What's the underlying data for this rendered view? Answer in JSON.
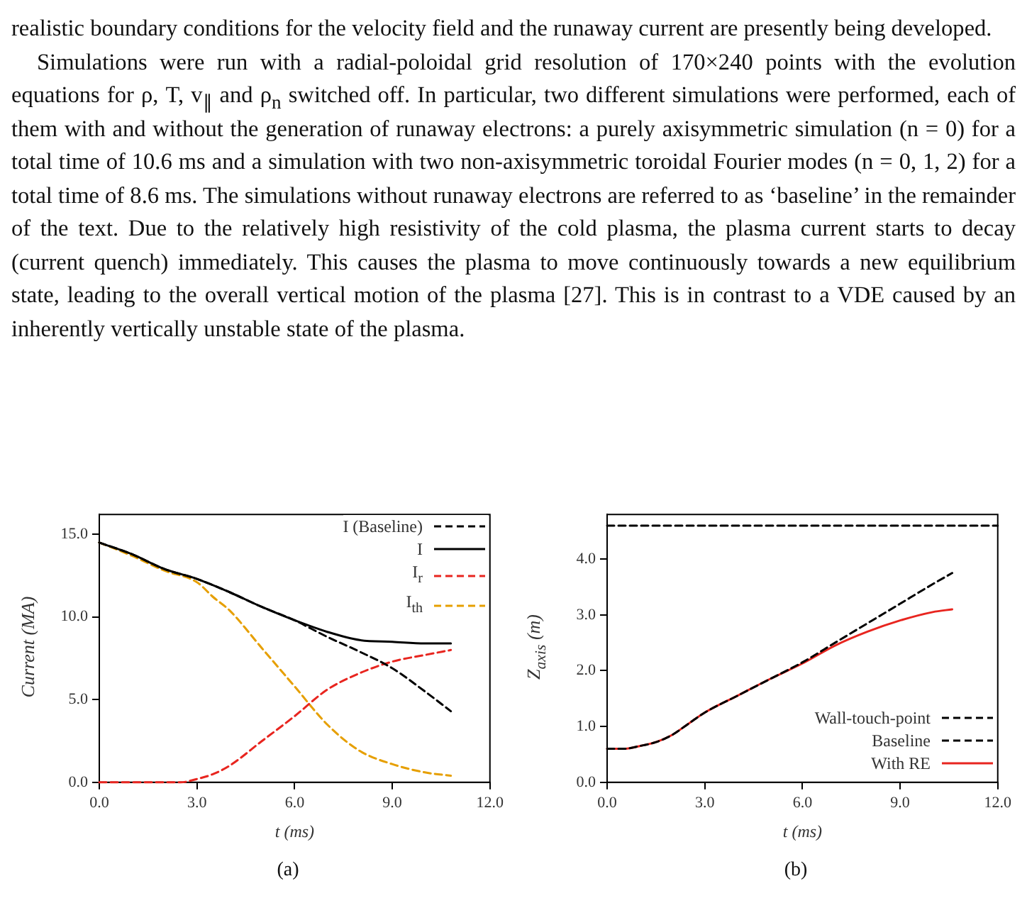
{
  "chart_data": [
    {
      "type": "line",
      "annotations": [
        "realistic boundary conditions for the velocity field and the runaway current are presently being developed.",
        "Simulations were run with a radial-poloidal grid resolution of 170×240 points with the evolution equations for ρ, T, v$_{∥}$ and ρ$_{n}$ switched off. In particular, two different simulations were performed, each of them with and without the generation of runaway electrons: a purely axisymmetric simulation (n = 0) for a total time of 10.6 ms and a simulation with two non-axisymmetric toroidal Fourier modes (n = 0, 1, 2) for a total time of 8.6 ms. The simulations without runaway electrons are referred to as ‘baseline’ in the remainder of the text. Due to the relatively high resistivity of the cold plasma, the plasma current starts to decay (current quench) immediately. This causes the plasma to move continuously towards a new equilibrium state, leading to the overall vertical motion of the plasma [27]. This is in contrast to a VDE caused by an inherently vertically unstable state of the plasma.",
        "(a)"
      ],
      "xlabel": "t (ms)",
      "ylabel": "Current (MA)",
      "xlim": [
        0,
        12
      ],
      "ylim": [
        0,
        16.2
      ],
      "xticks": [
        {
          "value": 0,
          "label": "0.0"
        },
        {
          "value": 3,
          "label": "3.0"
        },
        {
          "value": 6,
          "label": "6.0"
        },
        {
          "value": 9,
          "label": "9.0"
        },
        {
          "value": 12,
          "label": "12.0"
        }
      ],
      "yticks": [
        {
          "value": 0,
          "label": "0.0"
        },
        {
          "value": 5,
          "label": "5.0"
        },
        {
          "value": 10,
          "label": "10.0"
        },
        {
          "value": 15,
          "label": "15.0"
        }
      ],
      "grid": false,
      "legend": "top right",
      "series": [
        {
          "name": "I (Baseline)",
          "color": "#000000",
          "line_style": "dashed",
          "x": [
            0,
            1,
            2,
            3,
            4,
            5,
            6,
            6.5,
            7,
            8,
            9,
            10,
            10.8
          ],
          "values": [
            14.5,
            13.8,
            12.9,
            12.3,
            11.5,
            10.6,
            9.8,
            9.3,
            8.8,
            7.9,
            6.9,
            5.5,
            4.3
          ]
        },
        {
          "name": "I",
          "color": "#000000",
          "line_style": "solid",
          "x": [
            0,
            1,
            2,
            3,
            4,
            5,
            6,
            7,
            8,
            9,
            10,
            10.8
          ],
          "values": [
            14.5,
            13.8,
            12.9,
            12.3,
            11.5,
            10.6,
            9.8,
            9.1,
            8.6,
            8.5,
            8.4,
            8.4
          ]
        },
        {
          "name": "I$_{r}$",
          "color": "#e8251f",
          "line_style": "dashed",
          "x": [
            0,
            2,
            2.5,
            3,
            3.5,
            4,
            5,
            6,
            7,
            8,
            9,
            10,
            10.8
          ],
          "values": [
            0,
            0,
            0,
            0.2,
            0.5,
            1.0,
            2.5,
            4.0,
            5.6,
            6.6,
            7.3,
            7.7,
            8.0
          ]
        },
        {
          "name": "I$_{th}$",
          "color": "#e69f00",
          "line_style": "dashed",
          "x": [
            0,
            1,
            2,
            3,
            3.5,
            4,
            5,
            6,
            7,
            8,
            9,
            10,
            10.8
          ],
          "values": [
            14.5,
            13.7,
            12.8,
            12.1,
            11.2,
            10.4,
            8.1,
            5.8,
            3.5,
            1.9,
            1.1,
            0.6,
            0.4
          ]
        }
      ]
    },
    {
      "type": "line",
      "annotations": [
        "(b)"
      ],
      "xlabel": "t (ms)",
      "ylabel": "Z$_{axis}$ (m)",
      "xlim": [
        0,
        12
      ],
      "ylim": [
        0,
        4.8
      ],
      "xticks": [
        {
          "value": 0,
          "label": "0.0"
        },
        {
          "value": 3,
          "label": "3.0"
        },
        {
          "value": 6,
          "label": "6.0"
        },
        {
          "value": 9,
          "label": "9.0"
        },
        {
          "value": 12,
          "label": "12.0"
        }
      ],
      "yticks": [
        {
          "value": 0,
          "label": "0.0"
        },
        {
          "value": 1,
          "label": "1.0"
        },
        {
          "value": 2,
          "label": "2.0"
        },
        {
          "value": 3,
          "label": "3.0"
        },
        {
          "value": 4,
          "label": "4.0"
        }
      ],
      "grid": false,
      "legend": "bottom right",
      "series": [
        {
          "name": "Wall-touch-point",
          "color": "#000000",
          "line_style": "dashed",
          "x": [
            0,
            12
          ],
          "values": [
            4.6,
            4.6
          ]
        },
        {
          "name": "Baseline",
          "color": "#000000",
          "line_style": "dashed",
          "x": [
            0,
            0.5,
            1,
            1.5,
            2,
            2.5,
            3,
            4,
            5,
            6,
            7,
            8,
            9,
            10,
            10.6
          ],
          "values": [
            0.6,
            0.6,
            0.65,
            0.72,
            0.85,
            1.05,
            1.25,
            1.55,
            1.85,
            2.15,
            2.5,
            2.85,
            3.2,
            3.55,
            3.75
          ]
        },
        {
          "name": "With RE",
          "color": "#e8251f",
          "line_style": "solid",
          "x": [
            0,
            0.5,
            1,
            1.5,
            2,
            2.5,
            3,
            4,
            5,
            6,
            7,
            8,
            9,
            10,
            10.6
          ],
          "values": [
            0.6,
            0.6,
            0.65,
            0.72,
            0.85,
            1.05,
            1.25,
            1.55,
            1.85,
            2.13,
            2.45,
            2.7,
            2.9,
            3.05,
            3.1
          ]
        }
      ]
    }
  ]
}
